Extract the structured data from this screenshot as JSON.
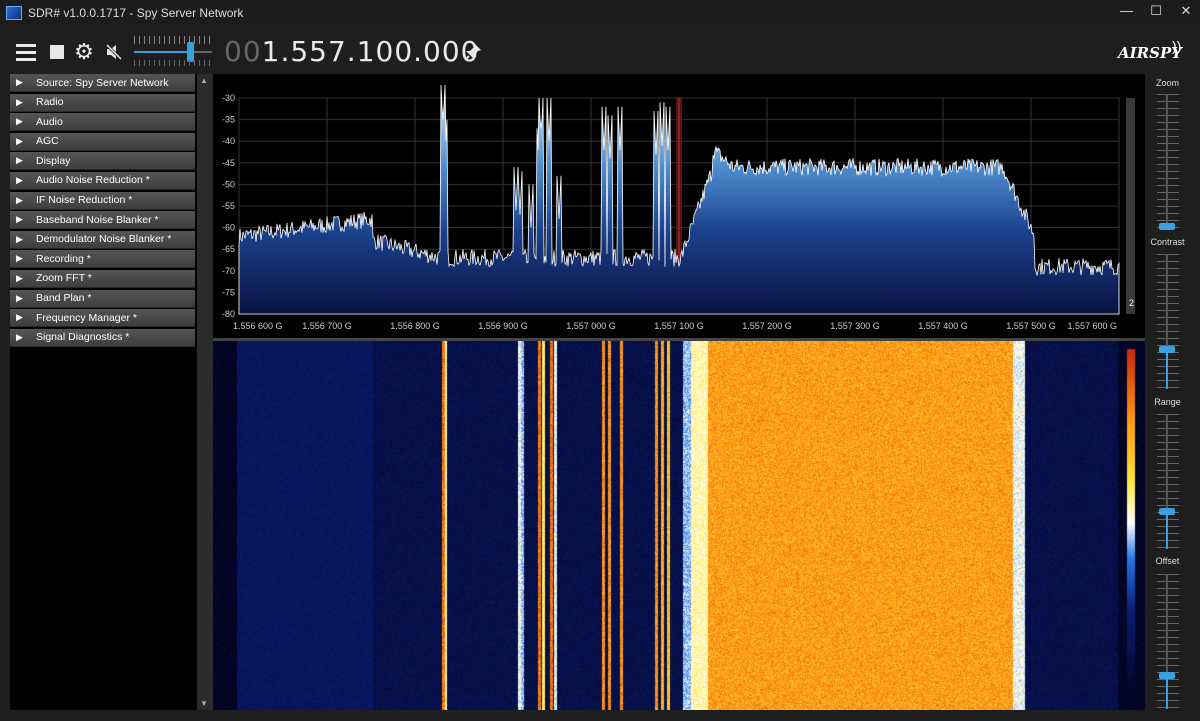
{
  "window": {
    "title": "SDR# v1.0.0.1717 - Spy Server Network",
    "controls": [
      "—",
      "☐",
      "✕"
    ]
  },
  "toolbar": {
    "frequency_dim": "00",
    "frequency": "1.557.100.000",
    "logo": "AIRSPY",
    "volume_level": 0.75
  },
  "sidebar": {
    "items": [
      {
        "label": "Source: Spy Server Network"
      },
      {
        "label": "Radio"
      },
      {
        "label": "Audio"
      },
      {
        "label": "AGC"
      },
      {
        "label": "Display"
      },
      {
        "label": "Audio Noise Reduction *"
      },
      {
        "label": "IF Noise Reduction *"
      },
      {
        "label": "Baseband Noise Blanker *"
      },
      {
        "label": "Demodulator Noise Blanker *"
      },
      {
        "label": "Recording *"
      },
      {
        "label": "Zoom FFT *"
      },
      {
        "label": "Band Plan *"
      },
      {
        "label": "Frequency Manager *"
      },
      {
        "label": "Signal Diagnostics *"
      }
    ]
  },
  "spectrum": {
    "y_ticks": [
      "-30",
      "-35",
      "-40",
      "-45",
      "-50",
      "-55",
      "-60",
      "-65",
      "-70",
      "-75",
      "-80"
    ],
    "x_ticks": [
      "1.556 600 G",
      "1.556 700 G",
      "1.556 800 G",
      "1.556 900 G",
      "1.557 000 G",
      "1.557 100 G",
      "1.557 200 G",
      "1.557 300 G",
      "1.557 400 G",
      "1.557 500 G",
      "1.557 600 G"
    ],
    "scale_value": "2"
  },
  "right_panel": {
    "zoom_label": "Zoom",
    "contrast_label": "Contrast",
    "range_label": "Range",
    "offset_label": "Offset"
  }
}
